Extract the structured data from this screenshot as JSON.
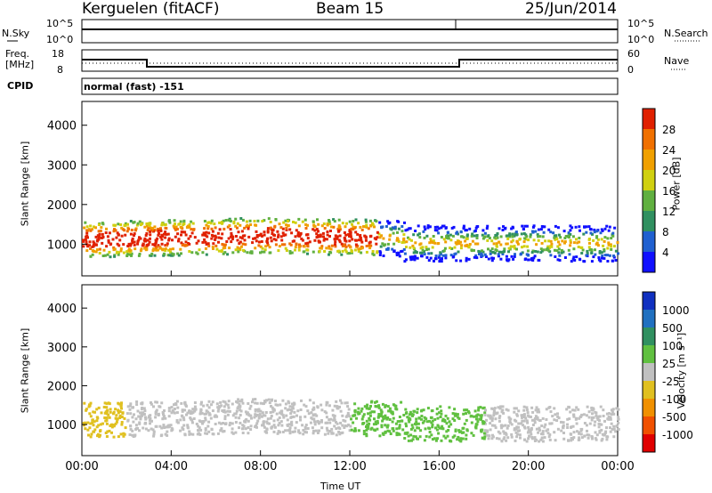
{
  "header": {
    "station": "Kerguelen (fitACF)",
    "beam": "Beam 15",
    "date": "25/Jun/2014"
  },
  "strips": {
    "nsky_label": "N.Sky",
    "nsearch_label": "N.Search",
    "noise_ticks_left": [
      "10^5",
      "10^0"
    ],
    "noise_ticks_right": [
      "10^5",
      "10^0"
    ],
    "freq_label_1": "Freq.",
    "freq_label_2": "[MHz]",
    "freq_ticks": [
      "18",
      "8"
    ],
    "nave_label": "Nave",
    "nave_ticks": [
      "60",
      "0"
    ],
    "cpid_label": "CPID",
    "cpid_value": "normal (fast) -151"
  },
  "chart_data": [
    {
      "type": "heatmap",
      "name": "power",
      "ylabel": "Slant Range [km]",
      "y_ticks": [
        "1000",
        "2000",
        "3000",
        "4000"
      ],
      "ylim": [
        200,
        4600
      ],
      "colorbar_label": "Power [dB]",
      "colorbar_ticks": [
        "4",
        "8",
        "12",
        "16",
        "20",
        "24",
        "28"
      ],
      "colorbar_colors": [
        "#1010ff",
        "#2060d0",
        "#309060",
        "#60b040",
        "#d0d010",
        "#f0a000",
        "#f07000",
        "#e02000"
      ]
    },
    {
      "type": "heatmap",
      "name": "velocity",
      "ylabel": "Slant Range [km]",
      "y_ticks": [
        "1000",
        "2000",
        "3000",
        "4000"
      ],
      "ylim": [
        200,
        4600
      ],
      "colorbar_label": "Velocity [m s⁻¹]",
      "colorbar_ticks": [
        "1000",
        "500",
        "100",
        "25",
        "-25",
        "-100",
        "-500",
        "-1000"
      ],
      "colorbar_colors": [
        "#1030c0",
        "#2070c0",
        "#309060",
        "#60c040",
        "#c0c0c0",
        "#e0c020",
        "#f09000",
        "#f05000",
        "#e00000"
      ]
    }
  ],
  "x_axis": {
    "ticks": [
      "00:00",
      "04:00",
      "08:00",
      "12:00",
      "16:00",
      "20:00",
      "00:00"
    ],
    "label": "Time UT"
  }
}
